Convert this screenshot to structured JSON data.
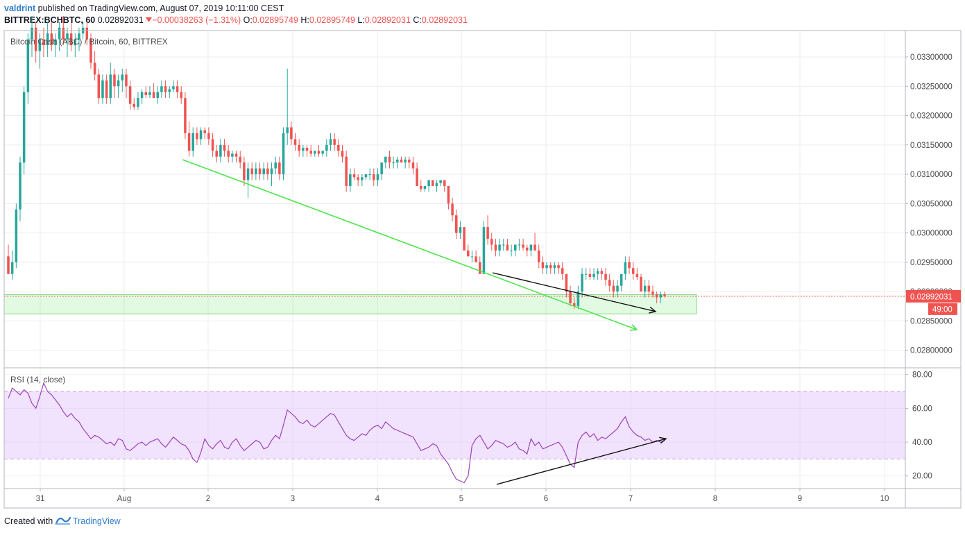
{
  "header": {
    "author": "valdrint",
    "published": "published on TradingView.com, August 07, 2019 10:11:00 CEST",
    "symbol": "BITTREX:BCHBTC, 60",
    "last": "0.02892031",
    "change_icon": "triangle-down-icon",
    "change": "−0.00038263 (−1.31%)",
    "o_label": "O:",
    "o": "0.02895749",
    "h_label": "H:",
    "h": "0.02895749",
    "l_label": "L:",
    "l": "0.02892031",
    "c_label": "C:",
    "c": "0.02892031"
  },
  "price_pane": {
    "label": "Bitcoin Cash (ABC) / Bitcoin, 60, BITTREX"
  },
  "rsi_pane": {
    "label": "RSI (14, close)"
  },
  "price_tag": {
    "value": "0.02892031",
    "countdown": "49:00"
  },
  "footer": {
    "created": "Created with",
    "logo_icon": "tradingview-logo-icon",
    "brand": "TradingView"
  },
  "colors": {
    "up": "#26a69a",
    "down": "#ef5350",
    "trend": "#4ee44e",
    "support_fill": "rgba(120,230,120,0.22)",
    "rsi_band": "rgba(225,190,250,0.45)",
    "rsi_line": "#9c44b8"
  },
  "chart_data": [
    {
      "type": "candlestick",
      "title": "Bitcoin Cash (ABC) / Bitcoin, 60, BITTREX",
      "x_ticks": [
        "31",
        "Aug",
        "2",
        "3",
        "4",
        "5",
        "6",
        "7",
        "8",
        "9",
        "10"
      ],
      "y_ticks": [
        "0.03300000",
        "0.03250000",
        "0.03200000",
        "0.03150000",
        "0.03100000",
        "0.03050000",
        "0.03000000",
        "0.02950000",
        "0.02900000",
        "0.02850000",
        "0.02800000"
      ],
      "ylim": [
        0.0277,
        0.03345
      ],
      "candles_ohlc": [
        [
          0.0296,
          0.0298,
          0.02935,
          0.0293
        ],
        [
          0.0293,
          0.0297,
          0.0292,
          0.0295
        ],
        [
          0.0295,
          0.0305,
          0.0294,
          0.0304
        ],
        [
          0.0304,
          0.0313,
          0.0302,
          0.0312
        ],
        [
          0.0312,
          0.0325,
          0.031,
          0.0324
        ],
        [
          0.0324,
          0.0334,
          0.0322,
          0.0333
        ],
        [
          0.0333,
          0.0337,
          0.033,
          0.0335
        ],
        [
          0.0335,
          0.0336,
          0.0329,
          0.0331
        ],
        [
          0.0331,
          0.0334,
          0.0328,
          0.0333
        ],
        [
          0.0333,
          0.0335,
          0.033,
          0.0332
        ],
        [
          0.0332,
          0.0336,
          0.033,
          0.0334
        ],
        [
          0.0334,
          0.0336,
          0.0331,
          0.0332
        ],
        [
          0.0332,
          0.0334,
          0.033,
          0.0333
        ],
        [
          0.0333,
          0.0336,
          0.0331,
          0.0335
        ],
        [
          0.0335,
          0.0337,
          0.0332,
          0.0333
        ],
        [
          0.0333,
          0.0335,
          0.033,
          0.0334
        ],
        [
          0.0334,
          0.0336,
          0.0331,
          0.0332
        ],
        [
          0.0332,
          0.0334,
          0.033,
          0.0333
        ],
        [
          0.0333,
          0.0335,
          0.0331,
          0.0334
        ],
        [
          0.0334,
          0.0336,
          0.0333,
          0.0335
        ],
        [
          0.0335,
          0.0336,
          0.0332,
          0.0333
        ],
        [
          0.0333,
          0.0334,
          0.0328,
          0.0329
        ],
        [
          0.0329,
          0.0331,
          0.0326,
          0.0327
        ],
        [
          0.0327,
          0.0328,
          0.0322,
          0.0323
        ],
        [
          0.0323,
          0.0327,
          0.0322,
          0.0326
        ],
        [
          0.0326,
          0.0327,
          0.0322,
          0.0323
        ],
        [
          0.0323,
          0.0329,
          0.0322,
          0.0327
        ],
        [
          0.0327,
          0.0328,
          0.0323,
          0.0325
        ],
        [
          0.0325,
          0.0327,
          0.0323,
          0.0326
        ],
        [
          0.0326,
          0.0328,
          0.0324,
          0.0327
        ],
        [
          0.0327,
          0.0328,
          0.0323,
          0.0325
        ],
        [
          0.0325,
          0.0326,
          0.0321,
          0.0322
        ],
        [
          0.0322,
          0.0323,
          0.0321,
          0.03215
        ],
        [
          0.03215,
          0.0324,
          0.0321,
          0.0323
        ],
        [
          0.0323,
          0.03245,
          0.0322,
          0.0324
        ],
        [
          0.0324,
          0.0325,
          0.0323,
          0.03235
        ],
        [
          0.03235,
          0.0325,
          0.0323,
          0.0324
        ],
        [
          0.0324,
          0.03255,
          0.0323,
          0.0323
        ],
        [
          0.0323,
          0.0325,
          0.0322,
          0.0324
        ],
        [
          0.0324,
          0.0326,
          0.0323,
          0.0325
        ],
        [
          0.0325,
          0.0326,
          0.0323,
          0.0324
        ],
        [
          0.0324,
          0.0325,
          0.0323,
          0.03245
        ],
        [
          0.03245,
          0.0326,
          0.0324,
          0.0325
        ],
        [
          0.0325,
          0.0326,
          0.0323,
          0.0324
        ],
        [
          0.0324,
          0.0325,
          0.0322,
          0.0323
        ],
        [
          0.0323,
          0.0324,
          0.0316,
          0.0317
        ],
        [
          0.0317,
          0.0319,
          0.0313,
          0.0314
        ],
        [
          0.0314,
          0.0318,
          0.0313,
          0.0317
        ],
        [
          0.0317,
          0.0318,
          0.0315,
          0.0316
        ],
        [
          0.0316,
          0.0318,
          0.0315,
          0.03175
        ],
        [
          0.03175,
          0.0318,
          0.0316,
          0.0317
        ],
        [
          0.0317,
          0.0318,
          0.0315,
          0.0316
        ],
        [
          0.0316,
          0.0317,
          0.0313,
          0.0314
        ],
        [
          0.0314,
          0.0315,
          0.0312,
          0.0313
        ],
        [
          0.0313,
          0.0316,
          0.0312,
          0.0315
        ],
        [
          0.0315,
          0.0316,
          0.0313,
          0.0314
        ],
        [
          0.0314,
          0.0315,
          0.0312,
          0.0313
        ],
        [
          0.0313,
          0.0314,
          0.0312,
          0.03135
        ],
        [
          0.03135,
          0.0314,
          0.0312,
          0.0313
        ],
        [
          0.0313,
          0.0314,
          0.0311,
          0.0312
        ],
        [
          0.0312,
          0.0313,
          0.0308,
          0.0309
        ],
        [
          0.0309,
          0.0312,
          0.0306,
          0.0311
        ],
        [
          0.0311,
          0.0312,
          0.0309,
          0.031
        ],
        [
          0.031,
          0.0312,
          0.0309,
          0.0311
        ],
        [
          0.0311,
          0.0312,
          0.0309,
          0.031
        ],
        [
          0.031,
          0.0312,
          0.0309,
          0.0311
        ],
        [
          0.0311,
          0.0312,
          0.0309,
          0.031
        ],
        [
          0.031,
          0.0312,
          0.0308,
          0.0311
        ],
        [
          0.0311,
          0.0313,
          0.031,
          0.0312
        ],
        [
          0.0312,
          0.0313,
          0.0309,
          0.031
        ],
        [
          0.031,
          0.0318,
          0.0309,
          0.0317
        ],
        [
          0.0317,
          0.0328,
          0.0315,
          0.0318
        ],
        [
          0.0318,
          0.0319,
          0.0315,
          0.0316
        ],
        [
          0.0316,
          0.0317,
          0.0314,
          0.0315
        ],
        [
          0.0315,
          0.0316,
          0.0313,
          0.0314
        ],
        [
          0.0314,
          0.0315,
          0.0313,
          0.03145
        ],
        [
          0.03145,
          0.0315,
          0.0313,
          0.0314
        ],
        [
          0.0314,
          0.0315,
          0.0313,
          0.03135
        ],
        [
          0.03135,
          0.0314,
          0.0313,
          0.0314
        ],
        [
          0.0314,
          0.0315,
          0.0313,
          0.03135
        ],
        [
          0.03135,
          0.0314,
          0.0313,
          0.0314
        ],
        [
          0.0314,
          0.0316,
          0.0313,
          0.0315
        ],
        [
          0.0315,
          0.0317,
          0.0314,
          0.0316
        ],
        [
          0.0316,
          0.0317,
          0.0314,
          0.0315
        ],
        [
          0.0315,
          0.0316,
          0.0313,
          0.0314
        ],
        [
          0.0314,
          0.0315,
          0.0312,
          0.0313
        ],
        [
          0.0313,
          0.0314,
          0.0307,
          0.0308
        ],
        [
          0.0308,
          0.0311,
          0.0307,
          0.031
        ],
        [
          0.031,
          0.0311,
          0.0309,
          0.03095
        ],
        [
          0.03095,
          0.031,
          0.0308,
          0.0309
        ],
        [
          0.0309,
          0.031,
          0.0308,
          0.03095
        ],
        [
          0.03095,
          0.031,
          0.0309,
          0.031
        ],
        [
          0.031,
          0.0311,
          0.0309,
          0.031
        ],
        [
          0.031,
          0.0311,
          0.0308,
          0.0309
        ],
        [
          0.0309,
          0.0311,
          0.0308,
          0.031
        ],
        [
          0.031,
          0.0312,
          0.0309,
          0.0312
        ],
        [
          0.0312,
          0.0313,
          0.0311,
          0.0313
        ],
        [
          0.0313,
          0.0314,
          0.0311,
          0.0312
        ],
        [
          0.0312,
          0.0313,
          0.0311,
          0.0312
        ],
        [
          0.0312,
          0.0313,
          0.0311,
          0.03125
        ],
        [
          0.03125,
          0.0313,
          0.0312,
          0.0312
        ],
        [
          0.0312,
          0.0313,
          0.0311,
          0.03125
        ],
        [
          0.03125,
          0.0313,
          0.0311,
          0.0312
        ],
        [
          0.0312,
          0.0313,
          0.031,
          0.0311
        ],
        [
          0.0311,
          0.0312,
          0.0308,
          0.0308
        ],
        [
          0.0308,
          0.0309,
          0.0307,
          0.03075
        ],
        [
          0.03075,
          0.0308,
          0.0307,
          0.0308
        ],
        [
          0.0308,
          0.0309,
          0.0307,
          0.0309
        ],
        [
          0.0309,
          0.0309,
          0.0308,
          0.0308
        ],
        [
          0.0308,
          0.0309,
          0.0307,
          0.03085
        ],
        [
          0.03085,
          0.0309,
          0.0308,
          0.0309
        ],
        [
          0.0309,
          0.0309,
          0.0307,
          0.0308
        ],
        [
          0.0308,
          0.0308,
          0.0304,
          0.0305
        ],
        [
          0.0305,
          0.0306,
          0.0302,
          0.0303
        ],
        [
          0.0303,
          0.0304,
          0.0299,
          0.03
        ],
        [
          0.03,
          0.0302,
          0.0299,
          0.0301
        ],
        [
          0.0301,
          0.0301,
          0.0297,
          0.0297
        ],
        [
          0.0297,
          0.0298,
          0.0296,
          0.0296
        ],
        [
          0.0296,
          0.0297,
          0.0295,
          0.0296
        ],
        [
          0.0296,
          0.0297,
          0.0295,
          0.0295
        ],
        [
          0.0295,
          0.0296,
          0.0293,
          0.0293
        ],
        [
          0.0293,
          0.0302,
          0.0293,
          0.0301
        ],
        [
          0.0301,
          0.0303,
          0.0298,
          0.0299
        ],
        [
          0.0299,
          0.03,
          0.0297,
          0.0298
        ],
        [
          0.0298,
          0.0299,
          0.0296,
          0.0297
        ],
        [
          0.0297,
          0.0299,
          0.0296,
          0.0298
        ],
        [
          0.0298,
          0.0299,
          0.0297,
          0.0298
        ],
        [
          0.0298,
          0.0299,
          0.0297,
          0.0297
        ],
        [
          0.0297,
          0.0298,
          0.0296,
          0.0297
        ],
        [
          0.0297,
          0.0298,
          0.0296,
          0.0298
        ],
        [
          0.0298,
          0.0299,
          0.0297,
          0.0298
        ],
        [
          0.0298,
          0.0299,
          0.0297,
          0.02975
        ],
        [
          0.02975,
          0.0298,
          0.0296,
          0.0297
        ],
        [
          0.0297,
          0.0298,
          0.0296,
          0.0298
        ],
        [
          0.0298,
          0.03,
          0.0297,
          0.0297
        ],
        [
          0.0297,
          0.0298,
          0.0294,
          0.0295
        ],
        [
          0.0295,
          0.0296,
          0.0293,
          0.0294
        ],
        [
          0.0294,
          0.0295,
          0.0293,
          0.02945
        ],
        [
          0.02945,
          0.0295,
          0.0293,
          0.0294
        ],
        [
          0.0294,
          0.0295,
          0.0293,
          0.02945
        ],
        [
          0.02945,
          0.0295,
          0.0293,
          0.0294
        ],
        [
          0.0294,
          0.0295,
          0.0292,
          0.0293
        ],
        [
          0.0293,
          0.0293,
          0.0289,
          0.029
        ],
        [
          0.029,
          0.0291,
          0.02875,
          0.0288
        ],
        [
          0.0288,
          0.0289,
          0.0287,
          0.02875
        ],
        [
          0.02875,
          0.0291,
          0.0287,
          0.029
        ],
        [
          0.029,
          0.0294,
          0.0289,
          0.0293
        ],
        [
          0.0293,
          0.0294,
          0.0292,
          0.0293
        ],
        [
          0.0293,
          0.0294,
          0.0292,
          0.02925
        ],
        [
          0.02925,
          0.0294,
          0.0292,
          0.0293
        ],
        [
          0.0293,
          0.0294,
          0.0292,
          0.02935
        ],
        [
          0.02935,
          0.0294,
          0.0292,
          0.0293
        ],
        [
          0.0293,
          0.0294,
          0.0291,
          0.0292
        ],
        [
          0.0292,
          0.0293,
          0.029,
          0.0291
        ],
        [
          0.0291,
          0.0292,
          0.0289,
          0.029
        ],
        [
          0.029,
          0.0292,
          0.0289,
          0.0291
        ],
        [
          0.0291,
          0.0293,
          0.029,
          0.0293
        ],
        [
          0.0293,
          0.0296,
          0.0292,
          0.0295
        ],
        [
          0.0295,
          0.0296,
          0.0293,
          0.0294
        ],
        [
          0.0294,
          0.0295,
          0.0292,
          0.0293
        ],
        [
          0.0293,
          0.0294,
          0.0292,
          0.02925
        ],
        [
          0.02925,
          0.0293,
          0.029,
          0.029
        ],
        [
          0.029,
          0.0292,
          0.0289,
          0.0291
        ],
        [
          0.0291,
          0.0292,
          0.0289,
          0.029
        ],
        [
          0.029,
          0.0291,
          0.0289,
          0.02895
        ],
        [
          0.02895,
          0.029,
          0.0288,
          0.0289
        ],
        [
          0.0289,
          0.029,
          0.0288,
          0.02895
        ],
        [
          0.02895,
          0.029,
          0.0289,
          0.02892
        ]
      ],
      "current_price": 0.02892031,
      "support_zone": [
        0.02862,
        0.02895
      ],
      "trendline": [
        [
          0.03125,
          0.02835
        ]
      ],
      "grid": true
    },
    {
      "type": "line",
      "title": "RSI (14, close)",
      "y_ticks": [
        "80.00",
        "60.00",
        "40.00",
        "20.00"
      ],
      "ylim": [
        12.5,
        84
      ],
      "band": [
        30,
        70
      ],
      "values": [
        66,
        72,
        70,
        68,
        71,
        69,
        63,
        60,
        67,
        75,
        70,
        68,
        65,
        62,
        58,
        55,
        57,
        54,
        52,
        48,
        45,
        42,
        44,
        43,
        41,
        39,
        40,
        38,
        42,
        41,
        36,
        35,
        37,
        39,
        40,
        38,
        40,
        41,
        42,
        39,
        37,
        40,
        43,
        41,
        39,
        38,
        35,
        30,
        28,
        34,
        42,
        38,
        36,
        39,
        41,
        37,
        36,
        40,
        42,
        38,
        35,
        37,
        39,
        41,
        40,
        36,
        37,
        41,
        44,
        42,
        50,
        59,
        57,
        55,
        52,
        51,
        53,
        50,
        49,
        51,
        53,
        55,
        57,
        56,
        52,
        48,
        44,
        42,
        41,
        43,
        45,
        44,
        47,
        49,
        50,
        48,
        52,
        50,
        48,
        47,
        46,
        45,
        44,
        43,
        39,
        35,
        36,
        37,
        39,
        38,
        33,
        30,
        27,
        22,
        18,
        17,
        16,
        20,
        38,
        42,
        44,
        40,
        36,
        38,
        41,
        40,
        39,
        37,
        38,
        40,
        36,
        35,
        33,
        42,
        38,
        40,
        36,
        37,
        38,
        39,
        40,
        37,
        32,
        27,
        25,
        40,
        44,
        46,
        43,
        45,
        41,
        43,
        42,
        44,
        46,
        48,
        52,
        55,
        49,
        46,
        44,
        43,
        41,
        42,
        40,
        41,
        40,
        41
      ]
    }
  ]
}
